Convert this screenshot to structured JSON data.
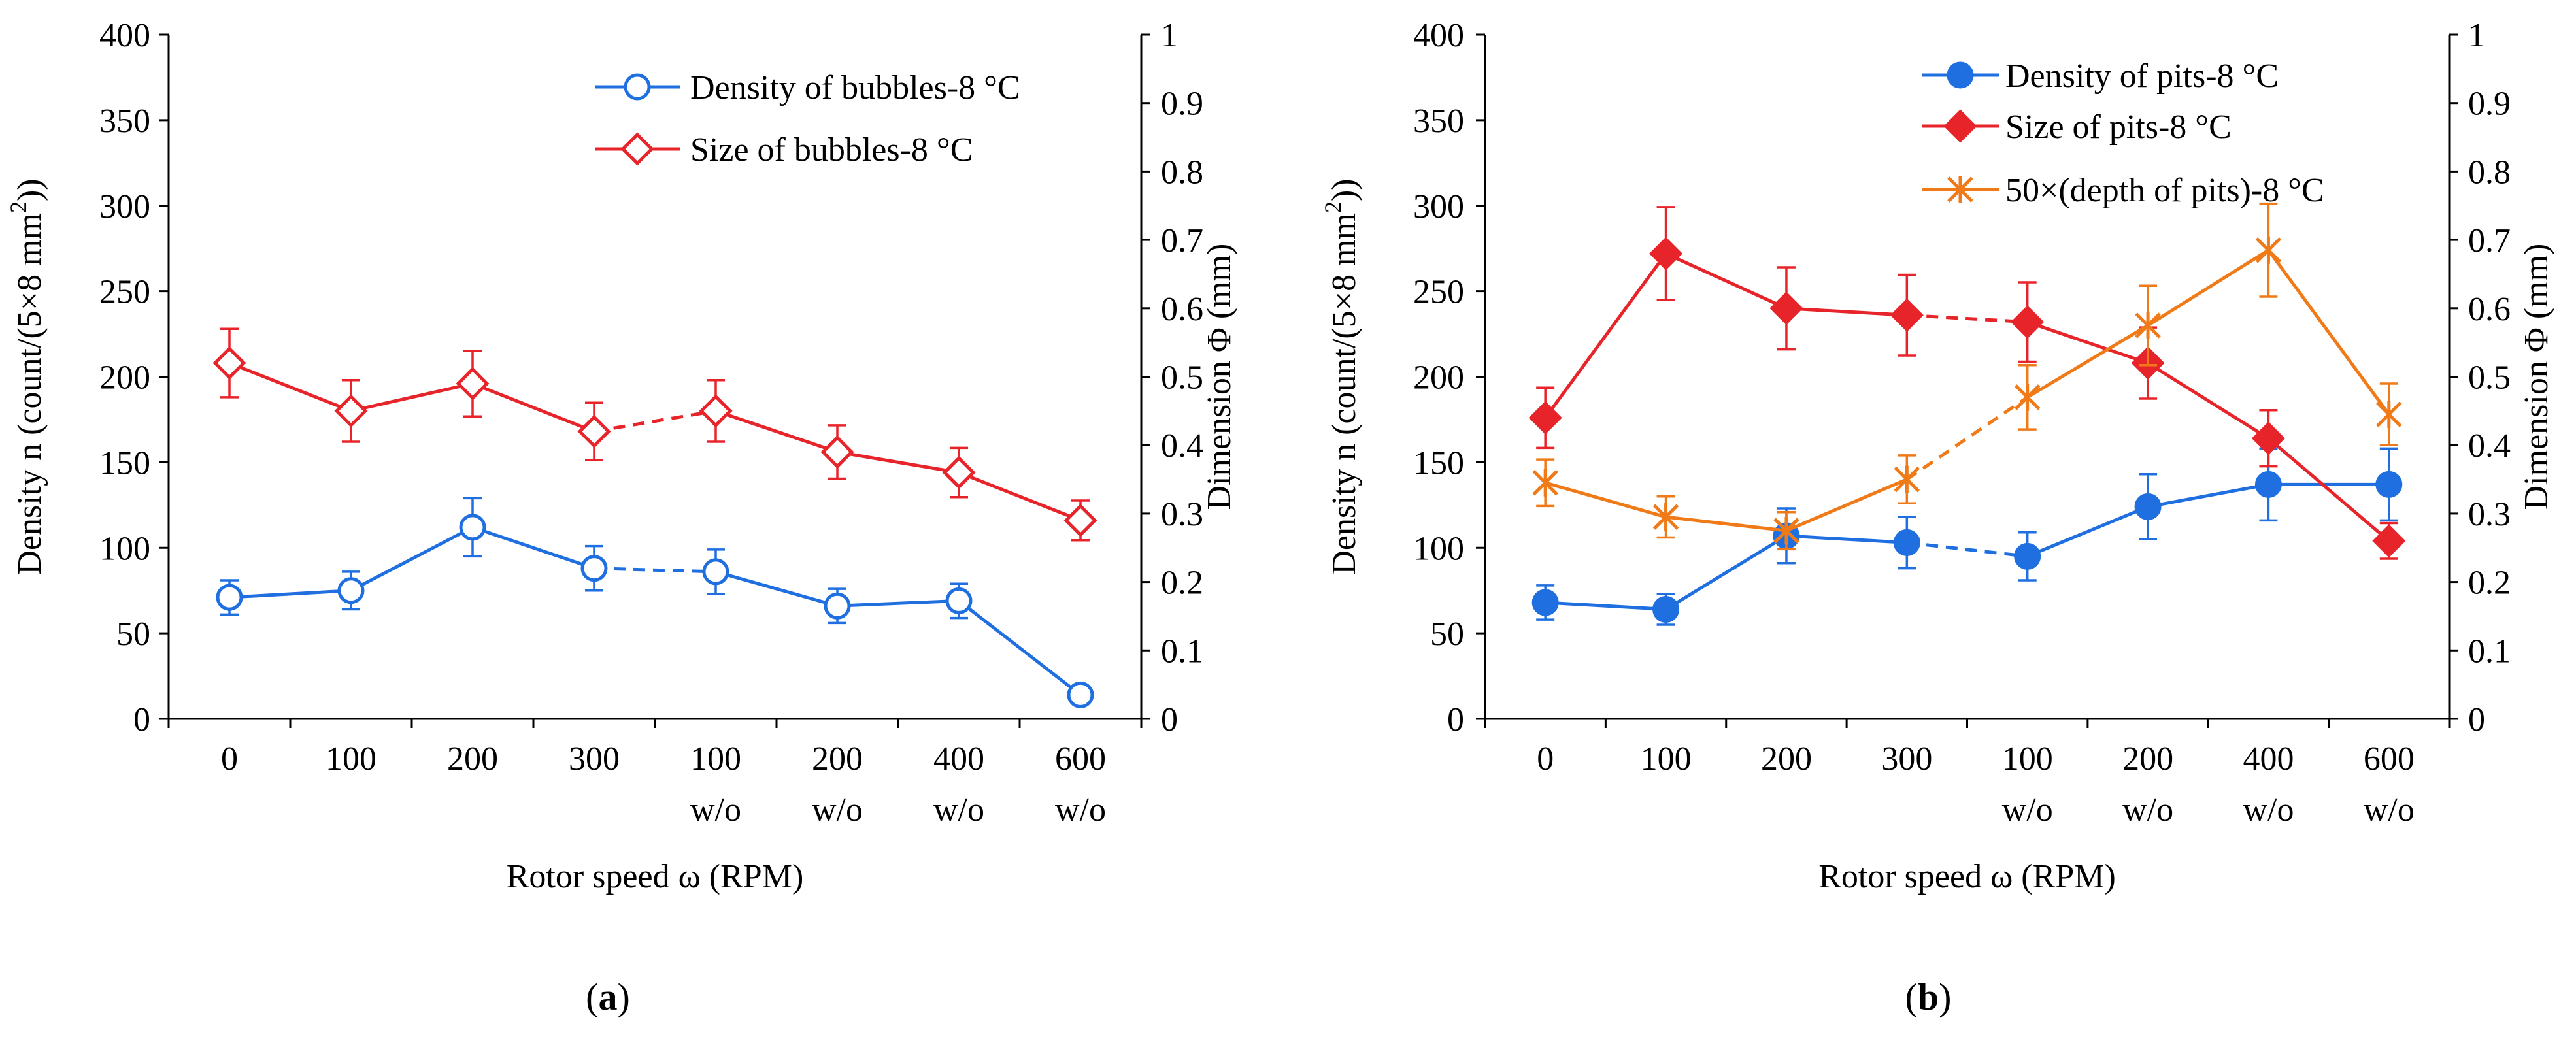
{
  "chart_data": [
    {
      "type": "line",
      "panel_label": {
        "open": "(",
        "letter": "a",
        "close": ")"
      },
      "categories": [
        {
          "line1": "0",
          "line2": ""
        },
        {
          "line1": "100",
          "line2": ""
        },
        {
          "line1": "200",
          "line2": ""
        },
        {
          "line1": "300",
          "line2": ""
        },
        {
          "line1": "100",
          "line2": "w/o"
        },
        {
          "line1": "200",
          "line2": "w/o"
        },
        {
          "line1": "400",
          "line2": "w/o"
        },
        {
          "line1": "600",
          "line2": "w/o"
        }
      ],
      "xlabel": "Rotor speed ω (RPM)",
      "ylabel_left": "Density n (count/(5×8 mm",
      "ylabel_left_sup": "2",
      "ylabel_left_end": "))",
      "ylabel_right": "Dimension Φ (mm)",
      "ylim_left": [
        0,
        400
      ],
      "yticks_left": [
        "0",
        "50",
        "100",
        "150",
        "200",
        "250",
        "300",
        "350",
        "400"
      ],
      "ylim_right": [
        0,
        1
      ],
      "yticks_right": [
        "0",
        "0.1",
        "0.2",
        "0.3",
        "0.4",
        "0.5",
        "0.6",
        "0.7",
        "0.8",
        "0.9",
        "1"
      ],
      "dashed_segment": [
        3,
        4
      ],
      "series": [
        {
          "name": "Density of bubbles-8 °C",
          "axis": "left",
          "marker": "open-circle",
          "color": "#1f6fe0",
          "values": [
            71,
            75,
            112,
            88,
            86,
            66,
            69,
            14
          ],
          "errors": [
            10,
            11,
            17,
            13,
            13,
            10,
            10,
            3
          ]
        },
        {
          "name": "Size of bubbles-8 °C",
          "axis": "right",
          "marker": "open-diamond",
          "color": "#e8242b",
          "values": [
            0.52,
            0.45,
            0.49,
            0.42,
            0.45,
            0.39,
            0.36,
            0.29
          ],
          "errors": [
            0.05,
            0.045,
            0.048,
            0.042,
            0.045,
            0.039,
            0.036,
            0.029
          ]
        }
      ]
    },
    {
      "type": "line",
      "panel_label": {
        "open": "(",
        "letter": "b",
        "close": ")"
      },
      "categories": [
        {
          "line1": "0",
          "line2": ""
        },
        {
          "line1": "100",
          "line2": ""
        },
        {
          "line1": "200",
          "line2": ""
        },
        {
          "line1": "300",
          "line2": ""
        },
        {
          "line1": "100",
          "line2": "w/o"
        },
        {
          "line1": "200",
          "line2": "w/o"
        },
        {
          "line1": "400",
          "line2": "w/o"
        },
        {
          "line1": "600",
          "line2": "w/o"
        }
      ],
      "xlabel": "Rotor speed ω (RPM)",
      "ylabel_left": "Density n (count/(5×8 mm",
      "ylabel_left_sup": "2",
      "ylabel_left_end": "))",
      "ylabel_right": "Dimension Φ (mm)",
      "ylim_left": [
        0,
        400
      ],
      "yticks_left": [
        "0",
        "50",
        "100",
        "150",
        "200",
        "250",
        "300",
        "350",
        "400"
      ],
      "ylim_right": [
        0,
        1
      ],
      "yticks_right": [
        "0",
        "0.1",
        "0.2",
        "0.3",
        "0.4",
        "0.5",
        "0.6",
        "0.7",
        "0.8",
        "0.9",
        "1"
      ],
      "dashed_segment": [
        3,
        4
      ],
      "series": [
        {
          "name": "Density of pits-8 °C",
          "axis": "left",
          "marker": "filled-circle",
          "color": "#1f6fe0",
          "values": [
            68,
            64,
            107,
            103,
            95,
            124,
            137,
            137
          ],
          "errors": [
            10,
            9,
            16,
            15,
            14,
            19,
            21,
            21
          ]
        },
        {
          "name": "Size of pits-8 °C",
          "axis": "right",
          "marker": "filled-diamond",
          "color": "#e8242b",
          "values": [
            0.44,
            0.68,
            0.6,
            0.59,
            0.58,
            0.52,
            0.41,
            0.26
          ],
          "errors": [
            0.044,
            0.068,
            0.06,
            0.059,
            0.058,
            0.052,
            0.041,
            0.026
          ]
        },
        {
          "name": "50×(depth of pits)-8 °C",
          "axis": "right",
          "marker": "asterisk",
          "color": "#f07a18",
          "values": [
            0.345,
            0.295,
            0.275,
            0.35,
            0.47,
            0.575,
            0.685,
            0.445
          ],
          "errors": [
            0.034,
            0.03,
            0.027,
            0.035,
            0.047,
            0.058,
            0.068,
            0.045
          ]
        }
      ]
    }
  ]
}
